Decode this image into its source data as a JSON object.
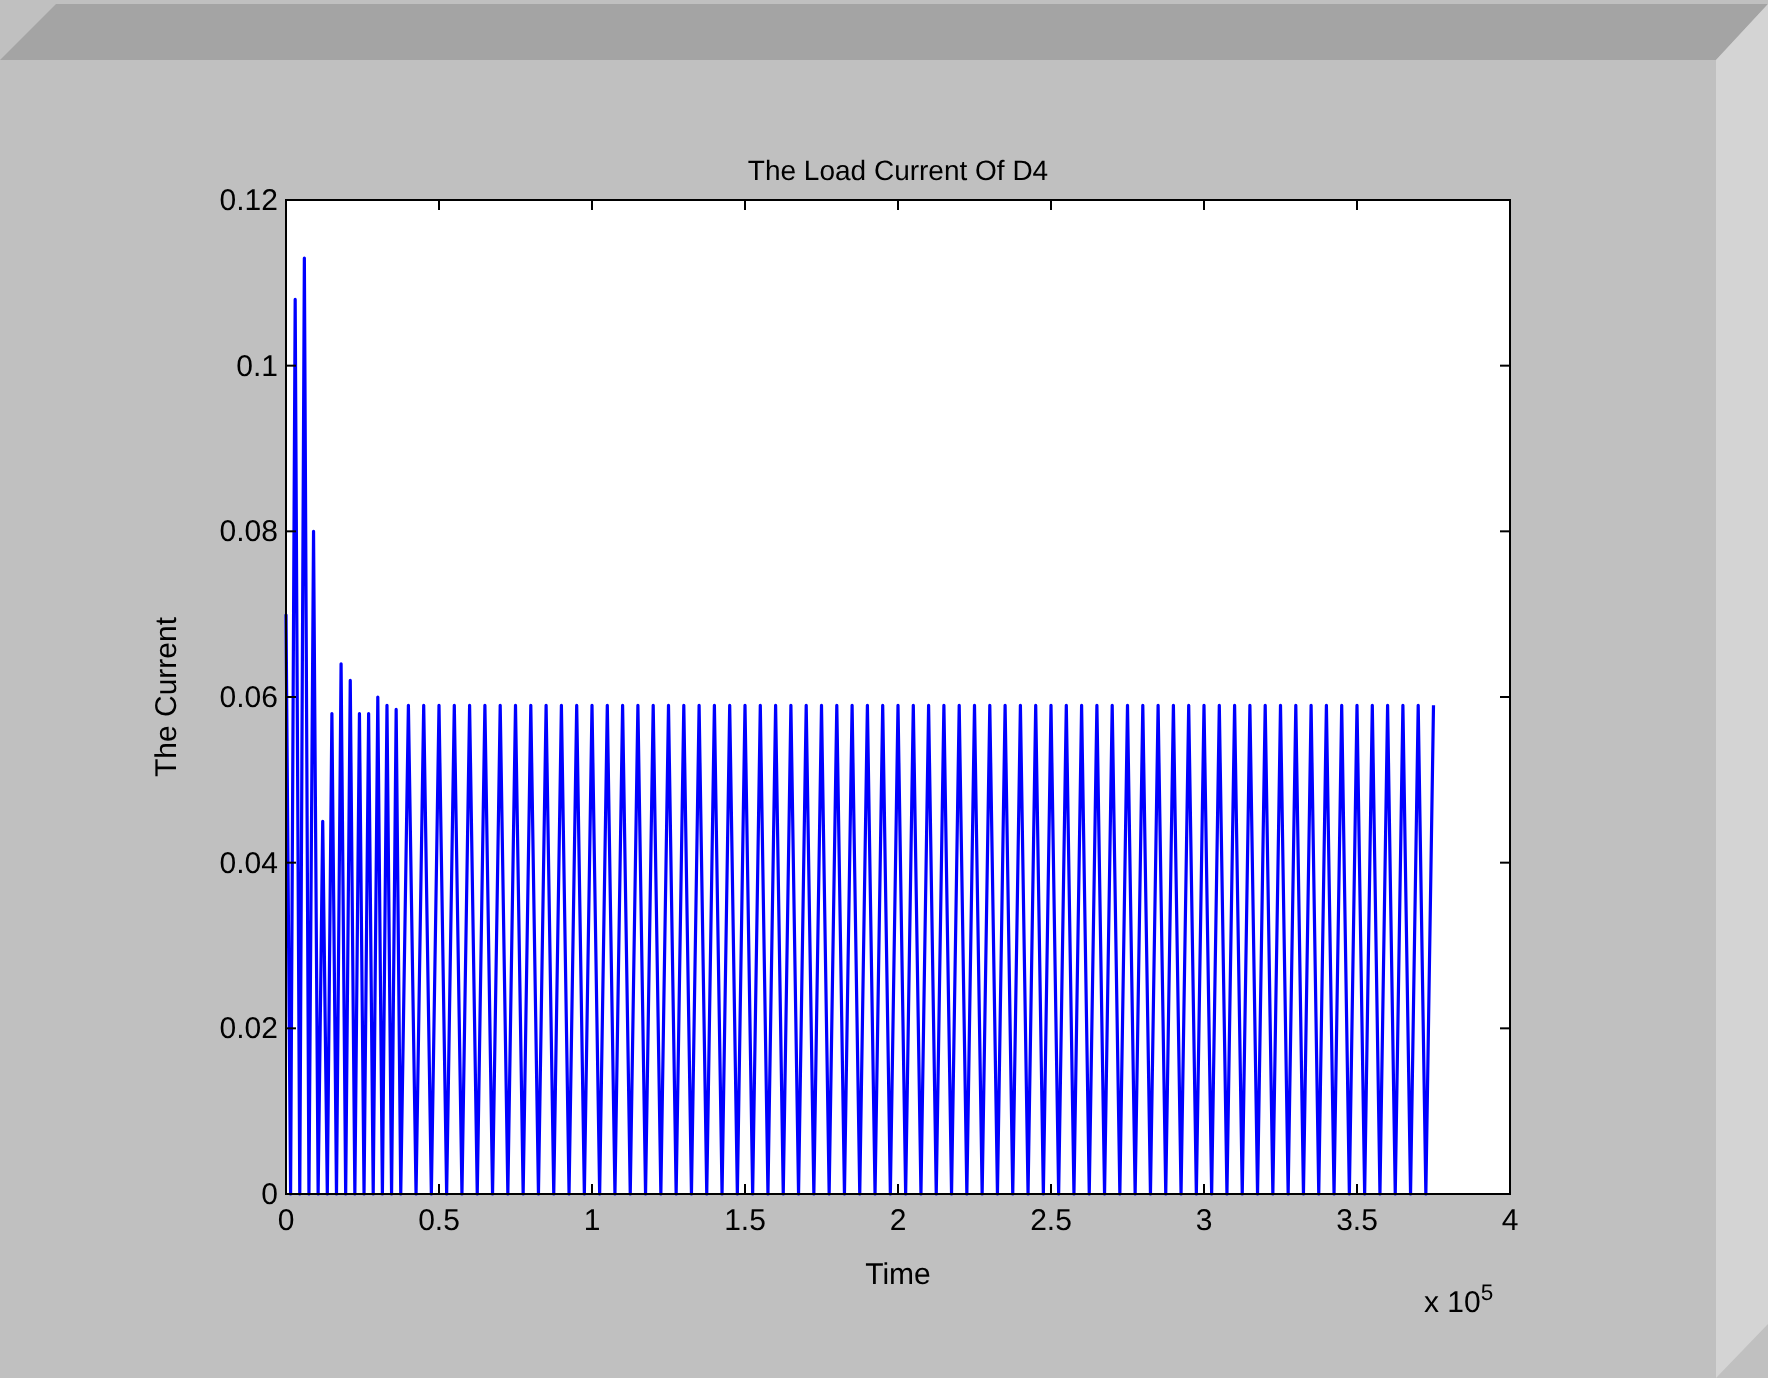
{
  "chart_data": {
    "type": "line",
    "title": "The Load Current Of D4",
    "xlabel": "Time",
    "ylabel": "The Current",
    "annotations": [
      "x 10$^{5}$"
    ],
    "xlim": [
      0,
      4
    ],
    "xticks": [
      0,
      0.5,
      1,
      1.5,
      2,
      2.5,
      3,
      3.5,
      4
    ],
    "ylim": [
      0,
      0.12
    ],
    "yticks": [
      0,
      0.02,
      0.04,
      0.06,
      0.08,
      0.1,
      0.12
    ],
    "line_style": "solid",
    "series": [
      {
        "color": "#0000ff",
        "x": [
          0,
          0.015,
          0.03,
          0.045,
          0.06,
          0.075,
          0.09,
          0.105,
          0.12,
          0.135,
          0.15,
          0.165,
          0.18,
          0.195,
          0.21,
          0.225,
          0.24,
          0.255,
          0.27,
          0.285,
          0.3,
          0.315,
          0.33,
          0.345,
          0.36,
          0.375,
          0.4,
          0.425,
          0.45,
          0.475,
          0.5,
          0.525,
          0.55,
          0.575,
          0.6,
          0.625,
          0.65,
          0.675,
          0.7,
          0.725,
          0.75,
          0.775,
          0.8,
          0.825,
          0.85,
          0.875,
          0.9,
          0.925,
          0.95,
          0.975,
          1,
          1.025,
          1.05,
          1.075,
          1.1,
          1.125,
          1.15,
          1.175,
          1.2,
          1.225,
          1.25,
          1.275,
          1.3,
          1.325,
          1.35,
          1.375,
          1.4,
          1.425,
          1.45,
          1.475,
          1.5,
          1.525,
          1.55,
          1.575,
          1.6,
          1.625,
          1.65,
          1.675,
          1.7,
          1.725,
          1.75,
          1.775,
          1.8,
          1.825,
          1.85,
          1.875,
          1.9,
          1.925,
          1.95,
          1.975,
          2,
          2.025,
          2.05,
          2.075,
          2.1,
          2.125,
          2.15,
          2.175,
          2.2,
          2.225,
          2.25,
          2.275,
          2.3,
          2.325,
          2.35,
          2.375,
          2.4,
          2.425,
          2.45,
          2.475,
          2.5,
          2.525,
          2.55,
          2.575,
          2.6,
          2.625,
          2.65,
          2.675,
          2.7,
          2.725,
          2.75,
          2.775,
          2.8,
          2.825,
          2.85,
          2.875,
          2.9,
          2.925,
          2.95,
          2.975,
          3,
          3.025,
          3.05,
          3.075,
          3.1,
          3.125,
          3.15,
          3.175,
          3.2,
          3.225,
          3.25,
          3.275,
          3.3,
          3.325,
          3.35,
          3.375,
          3.4,
          3.425,
          3.45,
          3.475,
          3.5,
          3.525,
          3.55,
          3.575,
          3.6,
          3.625,
          3.65,
          3.675,
          3.7,
          3.725,
          3.75
        ],
        "values": [
          0.07,
          0,
          0.108,
          0,
          0.113,
          0,
          0.08,
          0,
          0.045,
          0,
          0.058,
          0,
          0.064,
          0,
          0.062,
          0,
          0.058,
          0,
          0.058,
          0,
          0.06,
          0,
          0.059,
          0,
          0.0585,
          0,
          0.059,
          0,
          0.059,
          0,
          0.059,
          0,
          0.059,
          0,
          0.059,
          0,
          0.059,
          0,
          0.059,
          0,
          0.059,
          0,
          0.059,
          0,
          0.059,
          0,
          0.059,
          0,
          0.059,
          0,
          0.059,
          0,
          0.059,
          0,
          0.059,
          0,
          0.059,
          0,
          0.059,
          0,
          0.059,
          0,
          0.059,
          0,
          0.059,
          0,
          0.059,
          0,
          0.059,
          0,
          0.059,
          0,
          0.059,
          0,
          0.059,
          0,
          0.059,
          0,
          0.059,
          0,
          0.059,
          0,
          0.059,
          0,
          0.059,
          0,
          0.059,
          0,
          0.059,
          0,
          0.059,
          0,
          0.059,
          0,
          0.059,
          0,
          0.059,
          0,
          0.059,
          0,
          0.059,
          0,
          0.059,
          0,
          0.059,
          0,
          0.059,
          0,
          0.059,
          0,
          0.059,
          0,
          0.059,
          0,
          0.059,
          0,
          0.059,
          0,
          0.059,
          0,
          0.059,
          0,
          0.059,
          0,
          0.059,
          0,
          0.059,
          0,
          0.059,
          0,
          0.059,
          0,
          0.059,
          0,
          0.059,
          0,
          0.059,
          0,
          0.059,
          0,
          0.059,
          0,
          0.059,
          0,
          0.059,
          0,
          0.059,
          0,
          0.059,
          0,
          0.059,
          0,
          0.059,
          0,
          0.059,
          0,
          0.059,
          0,
          0.059,
          0,
          0.059
        ]
      }
    ]
  }
}
